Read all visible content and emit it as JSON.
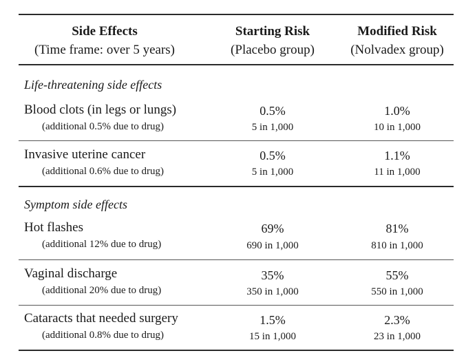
{
  "header": {
    "col1_line1": "Side Effects",
    "col1_line2": "(Time frame: over 5 years)",
    "col2_line1": "Starting Risk",
    "col2_line2": "(Placebo group)",
    "col3_line1": "Modified Risk",
    "col3_line2": "(Nolvadex group)"
  },
  "sections": [
    {
      "title": "Life-threatening side effects",
      "rows": [
        {
          "name": "Blood clots (in legs or lungs)",
          "note": "(additional 0.5% due to drug)",
          "start_pct": "0.5%",
          "start_count": "5 in 1,000",
          "mod_pct": "1.0%",
          "mod_count": "10 in 1,000"
        },
        {
          "name": "Invasive uterine cancer",
          "note": "(additional 0.6% due to drug)",
          "start_pct": "0.5%",
          "start_count": "5 in 1,000",
          "mod_pct": "1.1%",
          "mod_count": "11 in 1,000"
        }
      ]
    },
    {
      "title": "Symptom side effects",
      "rows": [
        {
          "name": "Hot flashes",
          "note": "(additional 12% due to drug)",
          "start_pct": "69%",
          "start_count": "690 in 1,000",
          "mod_pct": "81%",
          "mod_count": "810 in 1,000"
        },
        {
          "name": "Vaginal discharge",
          "note": "(additional 20% due to drug)",
          "start_pct": "35%",
          "start_count": "350 in 1,000",
          "mod_pct": "55%",
          "mod_count": "550 in 1,000"
        },
        {
          "name": "Cataracts that needed surgery",
          "note": "(additional 0.8% due to drug)",
          "start_pct": "1.5%",
          "start_count": "15 in 1,000",
          "mod_pct": "2.3%",
          "mod_count": "23 in 1,000"
        }
      ]
    }
  ]
}
